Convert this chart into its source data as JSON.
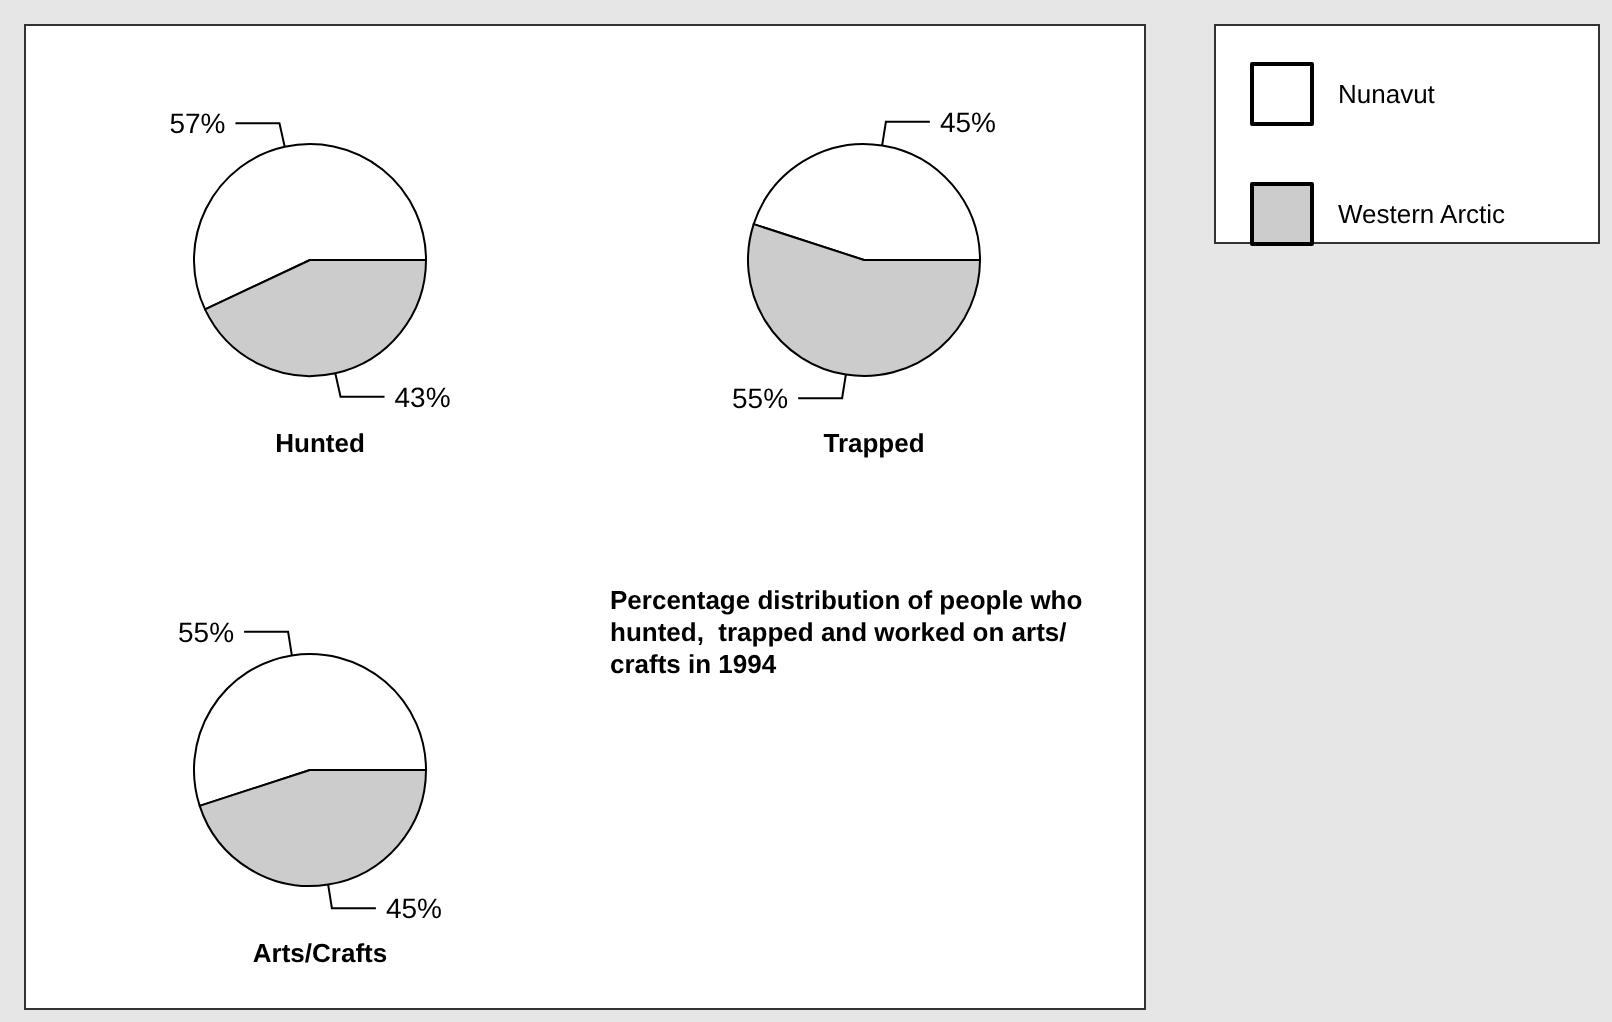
{
  "chart_data": {
    "type": "pie",
    "title": "Percentage distribution of people who hunted,  trapped and worked on arts/crafts in 1994",
    "categories": [
      "Nunavut",
      "Western Arctic"
    ],
    "colors": [
      "#ffffff",
      "#cccccc"
    ],
    "legend": "right",
    "series": [
      {
        "name": "Hunted",
        "values": [
          57,
          43
        ],
        "value_labels": [
          "57%",
          "43%"
        ]
      },
      {
        "name": "Trapped",
        "values": [
          45,
          55
        ],
        "value_labels": [
          "45%",
          "55%"
        ]
      },
      {
        "name": "Arts/Crafts",
        "values": [
          55,
          45
        ],
        "value_labels": [
          "55%",
          "45%"
        ]
      }
    ]
  }
}
